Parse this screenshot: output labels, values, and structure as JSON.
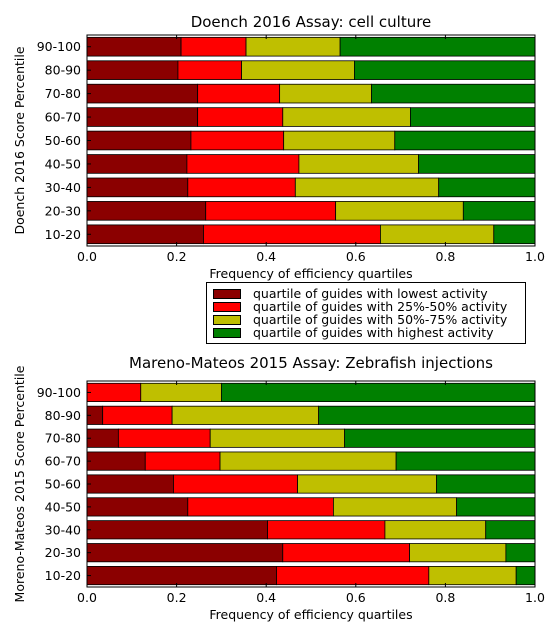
{
  "colors": {
    "lowest": "#8b0000",
    "q2": "#ff0000",
    "q3": "#bfbf00",
    "highest": "#008000"
  },
  "legend": [
    {
      "label": "quartile of guides with lowest activity",
      "color": "#8b0000"
    },
    {
      "label": "quartile of guides with 25%-50% activity",
      "color": "#ff0000"
    },
    {
      "label": "quartile of guides with 50%-75% activity",
      "color": "#bfbf00"
    },
    {
      "label": "quartile of guides with highest activity",
      "color": "#008000"
    }
  ],
  "chart_data": [
    {
      "type": "bar",
      "orientation": "horizontal-stacked",
      "title": "Doench 2016 Assay: cell culture",
      "xlabel": "Frequency of efficiency quartiles",
      "ylabel": "Doench 2016 Score Percentile",
      "xlim": [
        0,
        1
      ],
      "xticks": [
        "0.0",
        "0.2",
        "0.4",
        "0.6",
        "0.8",
        "1.0"
      ],
      "categories": [
        "10-20",
        "20-30",
        "30-40",
        "40-50",
        "50-60",
        "60-70",
        "70-80",
        "80-90",
        "90-100"
      ],
      "series": [
        {
          "name": "quartile of guides with lowest activity",
          "values": [
            0.26,
            0.265,
            0.225,
            0.223,
            0.232,
            0.247,
            0.247,
            0.203,
            0.21
          ]
        },
        {
          "name": "quartile of guides with 25%-50% activity",
          "values": [
            0.395,
            0.29,
            0.24,
            0.25,
            0.207,
            0.19,
            0.183,
            0.142,
            0.145
          ]
        },
        {
          "name": "quartile of guides with 50%-75% activity",
          "values": [
            0.253,
            0.285,
            0.32,
            0.267,
            0.248,
            0.285,
            0.205,
            0.252,
            0.21
          ]
        },
        {
          "name": "quartile of guides with highest activity",
          "values": [
            0.092,
            0.16,
            0.215,
            0.26,
            0.313,
            0.278,
            0.365,
            0.403,
            0.435
          ]
        }
      ]
    },
    {
      "type": "bar",
      "orientation": "horizontal-stacked",
      "title": "Mareno-Mateos 2015 Assay: Zebrafish injections",
      "xlabel": "Frequency of efficiency quartiles",
      "ylabel": "Moreno-Mateos 2015 Score Percentile",
      "xlim": [
        0,
        1
      ],
      "xticks": [
        "0.0",
        "0.2",
        "0.4",
        "0.6",
        "0.8",
        "1.0"
      ],
      "categories": [
        "10-20",
        "20-30",
        "30-40",
        "40-50",
        "50-60",
        "60-70",
        "70-80",
        "80-90",
        "90-100"
      ],
      "series": [
        {
          "name": "quartile of guides with lowest activity",
          "values": [
            0.423,
            0.437,
            0.403,
            0.225,
            0.193,
            0.13,
            0.07,
            0.035,
            0.0
          ]
        },
        {
          "name": "quartile of guides with 25%-50% activity",
          "values": [
            0.34,
            0.283,
            0.262,
            0.325,
            0.277,
            0.167,
            0.205,
            0.155,
            0.12
          ]
        },
        {
          "name": "quartile of guides with 50%-75% activity",
          "values": [
            0.195,
            0.215,
            0.225,
            0.275,
            0.31,
            0.393,
            0.3,
            0.327,
            0.18
          ]
        },
        {
          "name": "quartile of guides with highest activity",
          "values": [
            0.042,
            0.065,
            0.11,
            0.175,
            0.22,
            0.31,
            0.425,
            0.483,
            0.7
          ]
        }
      ]
    }
  ]
}
